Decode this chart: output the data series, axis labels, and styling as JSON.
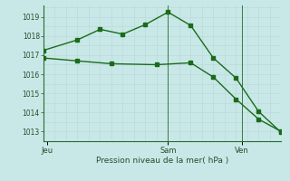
{
  "line1_x": [
    0,
    3,
    5,
    7,
    9,
    11,
    13,
    15,
    17,
    19,
    21
  ],
  "line1_y": [
    1017.25,
    1017.8,
    1018.35,
    1018.1,
    1018.6,
    1019.25,
    1018.55,
    1016.85,
    1015.8,
    1014.05,
    1012.95
  ],
  "line2_x": [
    0,
    3,
    6,
    10,
    13,
    15,
    17,
    19,
    21
  ],
  "line2_y": [
    1016.85,
    1016.7,
    1016.55,
    1016.5,
    1016.6,
    1015.85,
    1014.7,
    1013.65,
    1013.0
  ],
  "line_color": "#1a6b1a",
  "bg_color": "#c8e8e8",
  "grid_major_color": "#b0cece",
  "grid_minor_color": "#c0d8d8",
  "ylim": [
    1012.5,
    1019.6
  ],
  "yticks": [
    1013,
    1014,
    1015,
    1016,
    1017,
    1018,
    1019
  ],
  "xlim": [
    0,
    21
  ],
  "xtick_positions": [
    0.3,
    11,
    17.5
  ],
  "xtick_labels": [
    "Jeu",
    "Sam",
    "Ven"
  ],
  "xlabel": "Pression niveau de la mer( hPa )",
  "vlines_x": [
    11,
    17.5
  ],
  "vlines_color": "#3a7a3a",
  "marker": "s",
  "marker_size": 2.5,
  "linewidth": 1.0
}
